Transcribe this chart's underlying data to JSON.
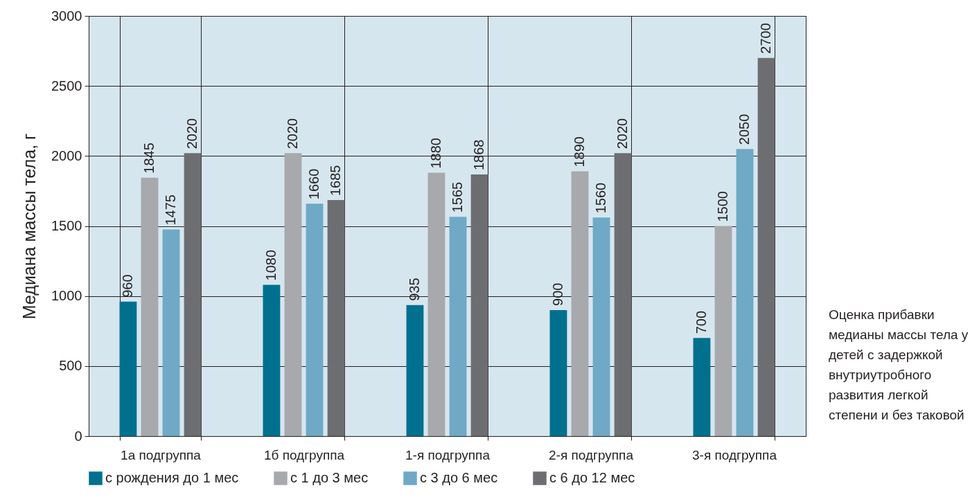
{
  "chart_data": {
    "type": "bar",
    "ylabel": "Медиана массы тела, г",
    "categories": [
      "1а подгруппа",
      "1б подгруппа",
      "1-я подгруппа",
      "2-я подгруппа",
      "3-я подгруппа"
    ],
    "series": [
      {
        "name": "с рождения до 1 мес",
        "color": "#00708f",
        "values": [
          960,
          1080,
          935,
          900,
          700
        ]
      },
      {
        "name": "с 1 до 3 мес",
        "color": "#a7a9ac",
        "values": [
          1845,
          2020,
          1880,
          1890,
          1500
        ]
      },
      {
        "name": "с 3 до 6 мес",
        "color": "#6fa9c6",
        "values": [
          1475,
          1660,
          1565,
          1560,
          2050
        ]
      },
      {
        "name": "с 6 до 12 мес",
        "color": "#6d6e71",
        "values": [
          2020,
          1685,
          1868,
          2020,
          2700
        ]
      }
    ],
    "ylim": [
      0,
      3000
    ],
    "yticks": [
      0,
      500,
      1000,
      1500,
      2000,
      2500,
      3000
    ],
    "grid": true,
    "legend": "bottom",
    "data_labels": true,
    "annotations": [
      "Оценка прибавки медианы массы тела у детей с задержкой внутриутробного развития легкой степени и без таковой"
    ]
  }
}
